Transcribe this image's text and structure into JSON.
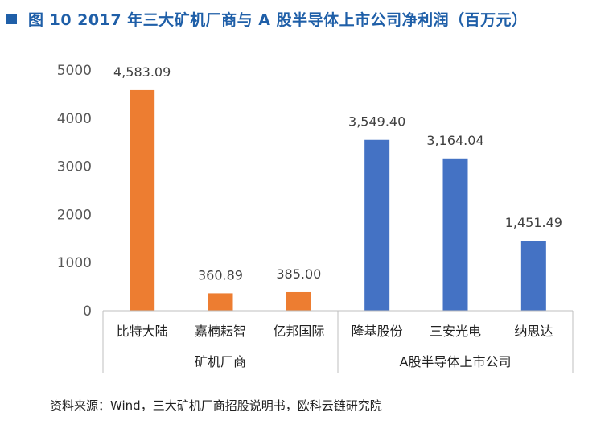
{
  "header": {
    "title": "图 10   2017 年三大矿机厂商与 A 股半导体上市公司净利润（百万元）",
    "accent_color": "#1f5fa8"
  },
  "source": "资料来源：Wind，三大矿机厂商招股说明书，欧科云链研究院",
  "chart_data": {
    "type": "bar",
    "title": "图 10   2017 年三大矿机厂商与 A 股半导体上市公司净利润（百万元）",
    "xlabel": "",
    "ylabel": "",
    "ylim": [
      0,
      5000
    ],
    "yticks": [
      0,
      1000,
      2000,
      3000,
      4000,
      5000
    ],
    "grid": false,
    "legend": "none",
    "categories": [
      "比特大陆",
      "嘉楠耘智",
      "亿邦国际",
      "隆基股份",
      "三安光电",
      "纳思达"
    ],
    "values": [
      4583.09,
      360.89,
      385.0,
      3549.4,
      3164.04,
      1451.49
    ],
    "data_labels": [
      "4,583.09",
      "360.89",
      "385.00",
      "3,549.40",
      "3,164.04",
      "1,451.49"
    ],
    "groups": [
      {
        "label": "矿机厂商",
        "start": 0,
        "end": 2,
        "color": "#ed7d31"
      },
      {
        "label": "A股半导体上市公司",
        "start": 3,
        "end": 5,
        "color": "#4472c4"
      }
    ]
  }
}
